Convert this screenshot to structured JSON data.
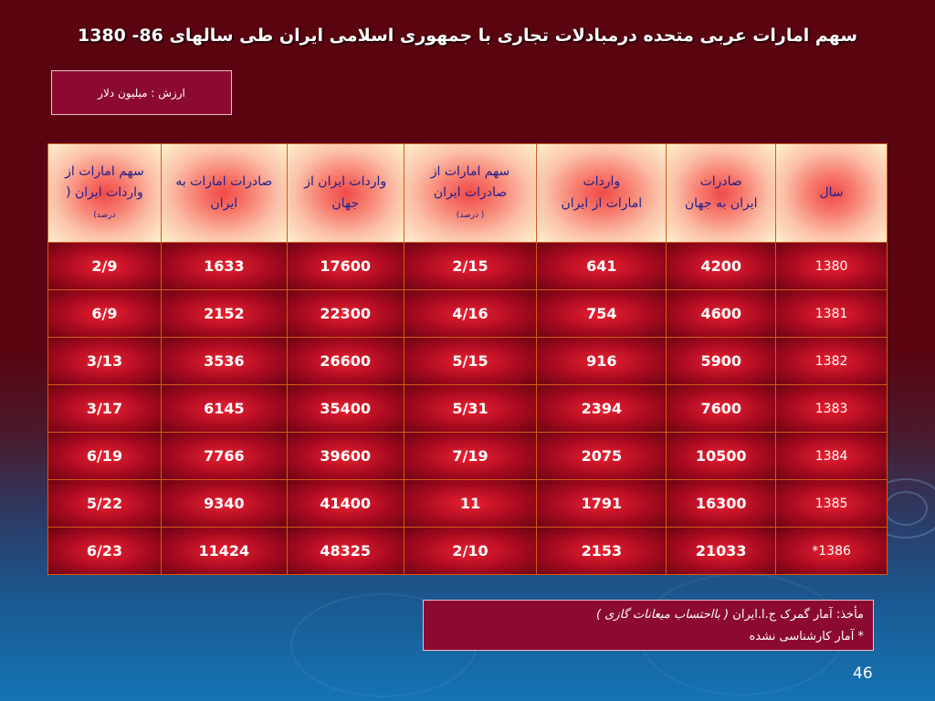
{
  "title": "سهم امارات عربی متحده درمبادلات تجاری با جمهوری اسلامی ایران طی سالهای 86- 1380",
  "unit_label": "ارزش : میلیون دلار",
  "table": {
    "headers": [
      {
        "line1": "سال",
        "line2": "",
        "note": ""
      },
      {
        "line1": "صادرات",
        "line2": "ایران به جهان",
        "note": ""
      },
      {
        "line1": "واردات",
        "line2": "امارات از ایران",
        "note": ""
      },
      {
        "line1": "سهم امارات  از",
        "line2": "صادرات ایران",
        "note": "( درصد)"
      },
      {
        "line1": "واردات ایران از",
        "line2": "جهان",
        "note": ""
      },
      {
        "line1": "صادرات امارات به",
        "line2": "ایران",
        "note": ""
      },
      {
        "line1": "سهم امارات از",
        "line2": "واردات ایران (",
        "note": "درصد)"
      }
    ],
    "rows": [
      [
        "1380",
        "4200",
        "641",
        "2/15",
        "17600",
        "1633",
        "2/9"
      ],
      [
        "1381",
        "4600",
        "754",
        "4/16",
        "22300",
        "2152",
        "6/9"
      ],
      [
        "1382",
        "5900",
        "916",
        "5/15",
        "26600",
        "3536",
        "3/13"
      ],
      [
        "1383",
        "7600",
        "2394",
        "5/31",
        "35400",
        "6145",
        "3/17"
      ],
      [
        "1384",
        "10500",
        "2075",
        "7/19",
        "39600",
        "7766",
        "6/19"
      ],
      [
        "1385",
        "16300",
        "1791",
        "11",
        "41400",
        "9340",
        "5/22"
      ],
      [
        "1386*",
        "21033",
        "2153",
        "2/10",
        "48325",
        "11424",
        "6/23"
      ]
    ]
  },
  "source": {
    "prefix": "مأخذ:  آمار گمرک ج.ا.ایران",
    "italic": "( بااحتساب  میعانات گازی )",
    "footnote": "* آمار کارشناسی نشده"
  },
  "page_number": "46"
}
